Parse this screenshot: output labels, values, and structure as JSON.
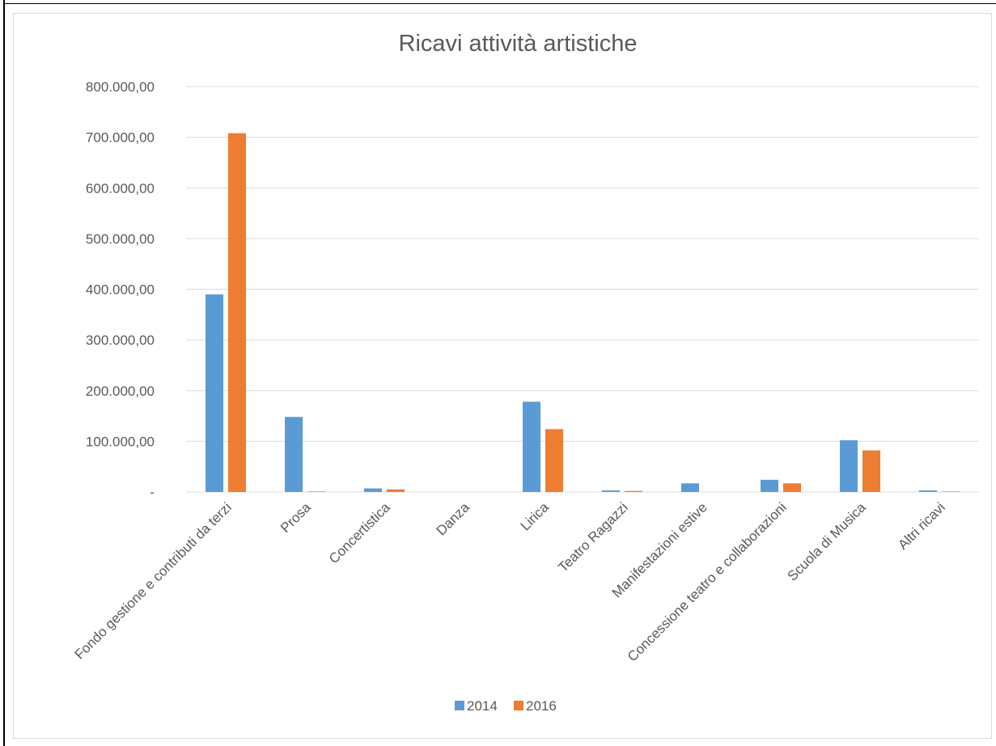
{
  "chart_data": {
    "type": "bar",
    "title": "Ricavi attività artistiche",
    "categories": [
      "Fondo gestione e contributi da terzi",
      "Prosa",
      "Concertistica",
      "Danza",
      "Lirica",
      "Teatro Ragazzi",
      "Manifestazioni estive",
      "Concessione teatro e collaborazioni",
      "Scuola di Musica",
      "Altri ricavi"
    ],
    "series": [
      {
        "name": "2014",
        "color": "#5b9bd5",
        "values": [
          390000,
          148000,
          7000,
          0,
          178000,
          3000,
          17000,
          24000,
          102000,
          3000
        ]
      },
      {
        "name": "2016",
        "color": "#ed7d31",
        "values": [
          708000,
          1000,
          5000,
          0,
          124000,
          2000,
          0,
          17000,
          82000,
          1000
        ]
      }
    ],
    "ylim": [
      0,
      800000
    ],
    "yticks": [
      {
        "value": 0,
        "label": "-"
      },
      {
        "value": 100000,
        "label": "100.000,00"
      },
      {
        "value": 200000,
        "label": "200.000,00"
      },
      {
        "value": 300000,
        "label": "300.000,00"
      },
      {
        "value": 400000,
        "label": "400.000,00"
      },
      {
        "value": 500000,
        "label": "500.000,00"
      },
      {
        "value": 600000,
        "label": "600.000,00"
      },
      {
        "value": 700000,
        "label": "700.000,00"
      },
      {
        "value": 800000,
        "label": "800.000,00"
      }
    ],
    "grid": true,
    "legend_position": "bottom",
    "xlabel": "",
    "ylabel": ""
  }
}
